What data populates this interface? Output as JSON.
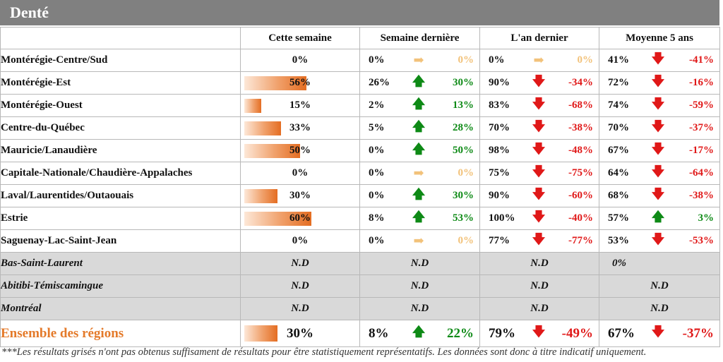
{
  "title": "Denté",
  "headers": [
    "Cette semaine",
    "Semaine dernière",
    "L'an dernier",
    "Moyenne 5 ans"
  ],
  "colors": {
    "up": "#0e8a16",
    "down": "#e01818",
    "flat": "#f2c27a",
    "bar": "#e46d22",
    "total_label": "#e47a2a",
    "grey_row": "#d9d9d9",
    "title_bar": "#808080"
  },
  "rows": [
    {
      "name": "Montérégie-Centre/Sud",
      "week": "0%",
      "week_value": 0,
      "lw": "0%",
      "lw_dir": "flat",
      "lw_diff": "0%",
      "ly": "0%",
      "ly_dir": "flat",
      "ly_diff": "0%",
      "avg": "41%",
      "avg_dir": "down",
      "avg_diff": "-41%"
    },
    {
      "name": "Montérégie-Est",
      "week": "56%",
      "week_value": 56,
      "lw": "26%",
      "lw_dir": "up",
      "lw_diff": "30%",
      "ly": "90%",
      "ly_dir": "down",
      "ly_diff": "-34%",
      "avg": "72%",
      "avg_dir": "down",
      "avg_diff": "-16%"
    },
    {
      "name": "Montérégie-Ouest",
      "week": "15%",
      "week_value": 15,
      "lw": "2%",
      "lw_dir": "up",
      "lw_diff": "13%",
      "ly": "83%",
      "ly_dir": "down",
      "ly_diff": "-68%",
      "avg": "74%",
      "avg_dir": "down",
      "avg_diff": "-59%"
    },
    {
      "name": "Centre-du-Québec",
      "week": "33%",
      "week_value": 33,
      "lw": "5%",
      "lw_dir": "up",
      "lw_diff": "28%",
      "ly": "70%",
      "ly_dir": "down",
      "ly_diff": "-38%",
      "avg": "70%",
      "avg_dir": "down",
      "avg_diff": "-37%"
    },
    {
      "name": "Mauricie/Lanaudière",
      "week": "50%",
      "week_value": 50,
      "lw": "0%",
      "lw_dir": "up",
      "lw_diff": "50%",
      "ly": "98%",
      "ly_dir": "down",
      "ly_diff": "-48%",
      "avg": "67%",
      "avg_dir": "down",
      "avg_diff": "-17%"
    },
    {
      "name": "Capitale-Nationale/Chaudière-Appalaches",
      "week": "0%",
      "week_value": 0,
      "lw": "0%",
      "lw_dir": "flat",
      "lw_diff": "0%",
      "ly": "75%",
      "ly_dir": "down",
      "ly_diff": "-75%",
      "avg": "64%",
      "avg_dir": "down",
      "avg_diff": "-64%"
    },
    {
      "name": "Laval/Laurentides/Outaouais",
      "week": "30%",
      "week_value": 30,
      "lw": "0%",
      "lw_dir": "up",
      "lw_diff": "30%",
      "ly": "90%",
      "ly_dir": "down",
      "ly_diff": "-60%",
      "avg": "68%",
      "avg_dir": "down",
      "avg_diff": "-38%"
    },
    {
      "name": "Estrie",
      "week": "60%",
      "week_value": 60,
      "lw": "8%",
      "lw_dir": "up",
      "lw_diff": "53%",
      "ly": "100%",
      "ly_dir": "down",
      "ly_diff": "-40%",
      "avg": "57%",
      "avg_dir": "up",
      "avg_diff": "3%"
    },
    {
      "name": "Saguenay-Lac-Saint-Jean",
      "week": "0%",
      "week_value": 0,
      "lw": "0%",
      "lw_dir": "flat",
      "lw_diff": "0%",
      "ly": "77%",
      "ly_dir": "down",
      "ly_diff": "-77%",
      "avg": "53%",
      "avg_dir": "down",
      "avg_diff": "-53%"
    }
  ],
  "grey_rows": [
    {
      "name": "Bas-Saint-Laurent",
      "week": "N.D",
      "lw": "N.D",
      "ly": "N.D",
      "avg": "0%"
    },
    {
      "name": "Abitibi-Témiscamingue",
      "week": "N.D",
      "lw": "N.D",
      "ly": "N.D",
      "avg": "N.D"
    },
    {
      "name": "Montréal",
      "week": "N.D",
      "lw": "N.D",
      "ly": "N.D",
      "avg": "N.D"
    }
  ],
  "total": {
    "name": "Ensemble des régions",
    "week": "30%",
    "week_value": 30,
    "lw": "8%",
    "lw_dir": "up",
    "lw_diff": "22%",
    "ly": "79%",
    "ly_dir": "down",
    "ly_diff": "-49%",
    "avg": "67%",
    "avg_dir": "down",
    "avg_diff": "-37%"
  },
  "footnote": "***Les résultats grisés n'ont pas obtenus suffisament de résultats pour être statistiquement représentatifs. Les données sont donc à titre indicatif uniquement."
}
